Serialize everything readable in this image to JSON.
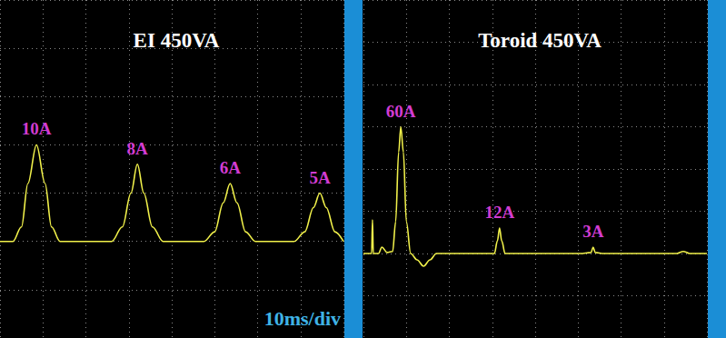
{
  "chart_data": [
    {
      "type": "line",
      "title": "EI 450VA",
      "x_label": "10ms/div",
      "x": [
        0,
        3,
        5,
        6.5,
        8.5,
        10.5,
        12,
        14,
        26,
        28.5,
        30.5,
        32,
        33.5,
        35.5,
        38,
        47.5,
        50,
        52,
        53.6,
        55.2,
        57.2,
        59.5,
        68.5,
        71,
        73,
        74.5,
        76,
        78,
        80
      ],
      "values": [
        0,
        0,
        1.5,
        6,
        10,
        6,
        1.5,
        0,
        0,
        1.5,
        5,
        8,
        5,
        1.5,
        0,
        0,
        1,
        4,
        6,
        4,
        1,
        0,
        0,
        1,
        3.5,
        5,
        3.5,
        1,
        0
      ],
      "color": "#f0f04a",
      "xlim": [
        0,
        80
      ],
      "xticks": [
        0,
        10,
        20,
        30,
        40,
        50,
        60,
        70,
        80
      ],
      "ylim": [
        -10,
        25
      ],
      "yticks": [
        -10,
        -5,
        0,
        5,
        10,
        15,
        20,
        25
      ],
      "grid": true,
      "tick_labels": false,
      "annotations": [
        {
          "text": "10A",
          "x": 8.5,
          "value": 10
        },
        {
          "text": "8A",
          "x": 32,
          "value": 8
        },
        {
          "text": "6A",
          "x": 53.6,
          "value": 6
        },
        {
          "text": "5A",
          "x": 74.5,
          "value": 5
        }
      ]
    },
    {
      "type": "line",
      "title": "Toroid 450VA",
      "x": [
        0,
        1.9,
        2.1,
        2.3,
        3.5,
        4.3,
        5.5,
        6.8,
        7.5,
        8.2,
        8.7,
        9.3,
        10,
        11,
        12.5,
        14,
        15.5,
        17,
        30.5,
        31.2,
        31.7,
        32.2,
        33,
        50.5,
        53,
        53.5,
        54,
        56,
        73,
        74.5,
        76,
        80
      ],
      "values": [
        0,
        0,
        16,
        0,
        0,
        3,
        0.5,
        1,
        15,
        48,
        60,
        48,
        15,
        0,
        -3,
        -6,
        -3,
        0,
        0,
        6,
        12,
        6,
        0,
        0,
        0.5,
        3,
        0.5,
        0,
        0,
        1,
        0,
        0
      ],
      "color": "#f0f04a",
      "xlim": [
        0,
        80
      ],
      "xticks": [
        0,
        10,
        20,
        30,
        40,
        50,
        60,
        70,
        80
      ],
      "ylim": [
        -40,
        120
      ],
      "yticks": [
        -40,
        -20,
        0,
        20,
        40,
        60,
        80,
        100,
        120
      ],
      "grid": true,
      "tick_labels": false,
      "annotations": [
        {
          "text": "60A",
          "x": 8.7,
          "value": 60
        },
        {
          "text": "12A",
          "x": 31.7,
          "value": 12
        },
        {
          "text": "3A",
          "x": 53.5,
          "value": 3
        }
      ]
    }
  ]
}
